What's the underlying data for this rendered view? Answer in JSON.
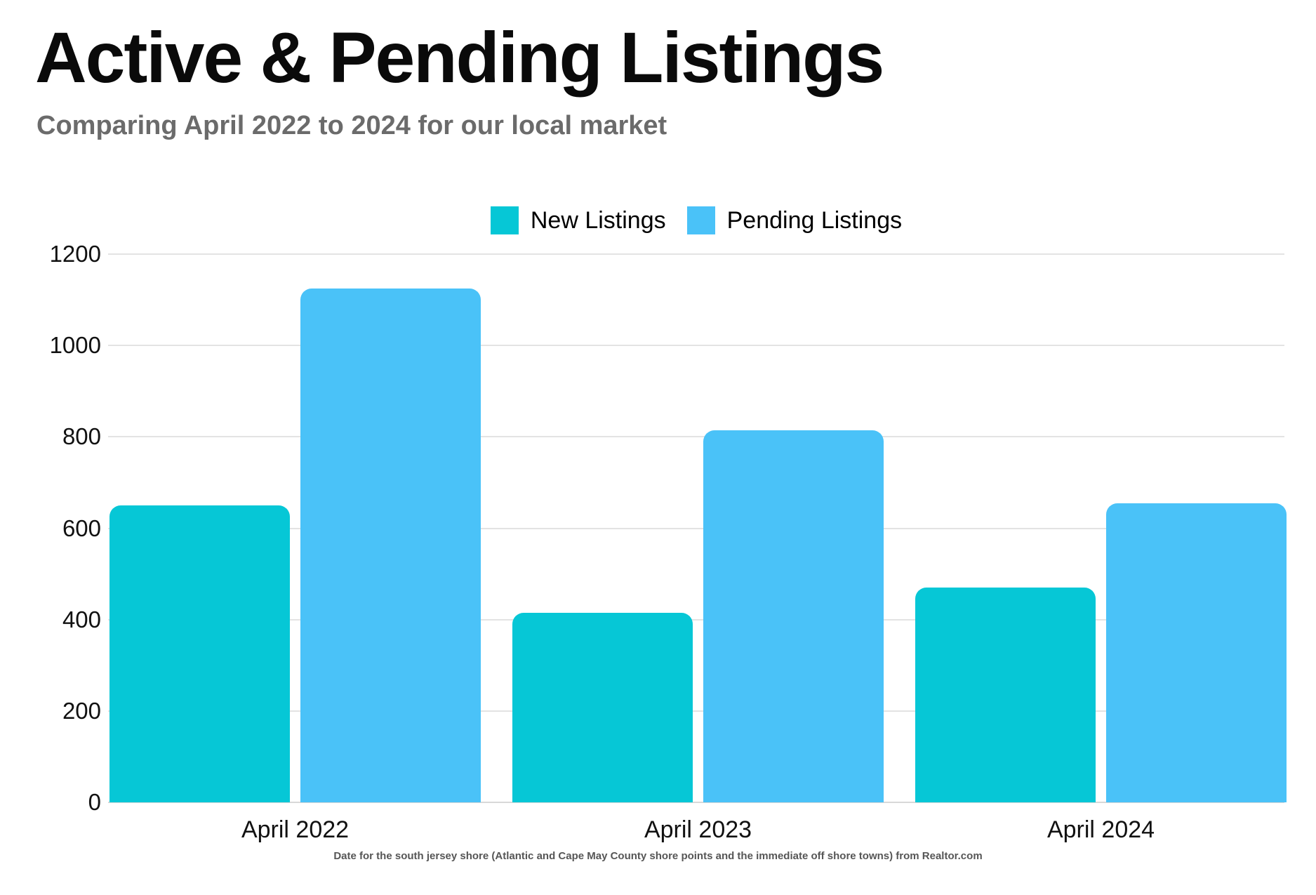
{
  "header": {
    "title": "Active & Pending Listings",
    "subtitle": "Comparing April 2022 to 2024 for our local market"
  },
  "chart_data": {
    "type": "bar",
    "categories": [
      "April 2022",
      "April 2023",
      "April 2024"
    ],
    "series": [
      {
        "name": "New Listings",
        "color": "#06C7D6",
        "values": [
          650,
          415,
          470
        ]
      },
      {
        "name": "Pending Listings",
        "color": "#4AC2F8",
        "values": [
          1125,
          815,
          655
        ]
      }
    ],
    "title": "Active & Pending Listings",
    "xlabel": "",
    "ylabel": "",
    "ylim": [
      0,
      1200
    ],
    "yticks": [
      0,
      200,
      400,
      600,
      800,
      1000,
      1200
    ],
    "grid": true,
    "legend_position": "top-center"
  },
  "footer": {
    "note": "Date for the south jersey shore (Atlantic and Cape May County shore points and the immediate off shore towns) from Realtor.com"
  },
  "colors": {
    "grid": "#E3E3E3",
    "axis_baseline": "#D8D8D8",
    "subtitle_text": "#6B6B6B",
    "footer_text": "#565656",
    "tick_text": "#111111",
    "background": "#FFFFFF"
  }
}
